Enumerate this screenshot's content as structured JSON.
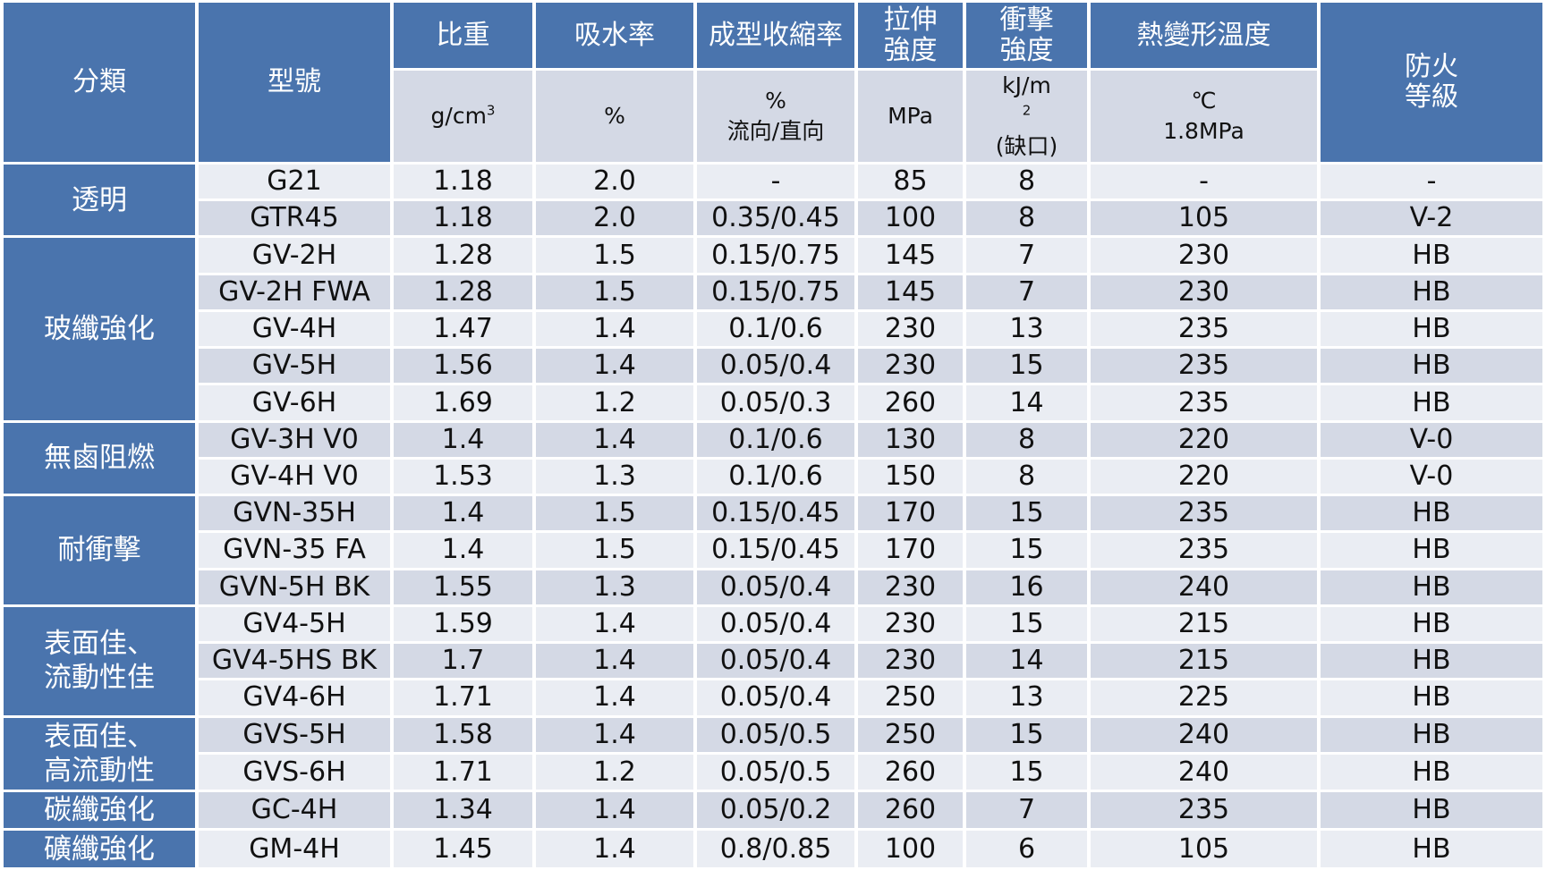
{
  "headers": {
    "category": "分類",
    "model": "型號",
    "density": "比重",
    "water_absorption": "吸水率",
    "shrinkage": "成型收縮率",
    "tensile_line1": "拉伸",
    "tensile_line2": "強度",
    "impact_line1": "衝擊",
    "impact_line2": "強度",
    "hdt": "熱變形溫度",
    "fire_line1": "防火",
    "fire_line2": "等級"
  },
  "units": {
    "density_base": "g/cm",
    "density_exp": "3",
    "water_absorption": "%",
    "shrinkage_line1": "%",
    "shrinkage_line2": "流向/直向",
    "tensile": "MPa",
    "impact_base": "kJ/m",
    "impact_exp": "2",
    "impact_line2": "(缺口)",
    "hdt_line1": "℃",
    "hdt_line2": "1.8MPa"
  },
  "categories": [
    {
      "label": "透明"
    },
    {
      "label": "玻纖強化"
    },
    {
      "label": "無鹵阻燃"
    },
    {
      "label": "耐衝擊"
    },
    {
      "label": "表面佳、流動性佳"
    },
    {
      "label": "表面佳、高流動性"
    },
    {
      "label": "碳纖強化"
    },
    {
      "label": "礦纖強化"
    }
  ],
  "rows": [
    {
      "model": "G21",
      "density": "1.18",
      "water": "2.0",
      "shrink": "-",
      "tensile": "85",
      "impact": "8",
      "hdt": "-",
      "fire": "-"
    },
    {
      "model": "GTR45",
      "density": "1.18",
      "water": "2.0",
      "shrink": "0.35/0.45",
      "tensile": "100",
      "impact": "8",
      "hdt": "105",
      "fire": "V-2"
    },
    {
      "model": "GV-2H",
      "density": "1.28",
      "water": "1.5",
      "shrink": "0.15/0.75",
      "tensile": "145",
      "impact": "7",
      "hdt": "230",
      "fire": "HB"
    },
    {
      "model": "GV-2H FWA",
      "density": "1.28",
      "water": "1.5",
      "shrink": "0.15/0.75",
      "tensile": "145",
      "impact": "7",
      "hdt": "230",
      "fire": "HB"
    },
    {
      "model": "GV-4H",
      "density": "1.47",
      "water": "1.4",
      "shrink": "0.1/0.6",
      "tensile": "230",
      "impact": "13",
      "hdt": "235",
      "fire": "HB"
    },
    {
      "model": "GV-5H",
      "density": "1.56",
      "water": "1.4",
      "shrink": "0.05/0.4",
      "tensile": "230",
      "impact": "15",
      "hdt": "235",
      "fire": "HB"
    },
    {
      "model": "GV-6H",
      "density": "1.69",
      "water": "1.2",
      "shrink": "0.05/0.3",
      "tensile": "260",
      "impact": "14",
      "hdt": "235",
      "fire": "HB"
    },
    {
      "model": "GV-3H V0",
      "density": "1.4",
      "water": "1.4",
      "shrink": "0.1/0.6",
      "tensile": "130",
      "impact": "8",
      "hdt": "220",
      "fire": "V-0"
    },
    {
      "model": "GV-4H V0",
      "density": "1.53",
      "water": "1.3",
      "shrink": "0.1/0.6",
      "tensile": "150",
      "impact": "8",
      "hdt": "220",
      "fire": "V-0"
    },
    {
      "model": "GVN-35H",
      "density": "1.4",
      "water": "1.5",
      "shrink": "0.15/0.45",
      "tensile": "170",
      "impact": "15",
      "hdt": "235",
      "fire": "HB"
    },
    {
      "model": "GVN-35 FA",
      "density": "1.4",
      "water": "1.5",
      "shrink": "0.15/0.45",
      "tensile": "170",
      "impact": "15",
      "hdt": "235",
      "fire": "HB"
    },
    {
      "model": "GVN-5H BK",
      "density": "1.55",
      "water": "1.3",
      "shrink": "0.05/0.4",
      "tensile": "230",
      "impact": "16",
      "hdt": "240",
      "fire": "HB"
    },
    {
      "model": "GV4-5H",
      "density": "1.59",
      "water": "1.4",
      "shrink": "0.05/0.4",
      "tensile": "230",
      "impact": "15",
      "hdt": "215",
      "fire": "HB"
    },
    {
      "model": "GV4-5HS BK",
      "density": "1.7",
      "water": "1.4",
      "shrink": "0.05/0.4",
      "tensile": "230",
      "impact": "14",
      "hdt": "215",
      "fire": "HB"
    },
    {
      "model": "GV4-6H",
      "density": "1.71",
      "water": "1.4",
      "shrink": "0.05/0.4",
      "tensile": "250",
      "impact": "13",
      "hdt": "225",
      "fire": "HB"
    },
    {
      "model": "GVS-5H",
      "density": "1.58",
      "water": "1.4",
      "shrink": "0.05/0.5",
      "tensile": "250",
      "impact": "15",
      "hdt": "240",
      "fire": "HB"
    },
    {
      "model": "GVS-6H",
      "density": "1.71",
      "water": "1.2",
      "shrink": "0.05/0.5",
      "tensile": "260",
      "impact": "15",
      "hdt": "240",
      "fire": "HB"
    },
    {
      "model": "GC-4H",
      "density": "1.34",
      "water": "1.4",
      "shrink": "0.05/0.2",
      "tensile": "260",
      "impact": "7",
      "hdt": "235",
      "fire": "HB"
    },
    {
      "model": "GM-4H",
      "density": "1.45",
      "water": "1.4",
      "shrink": "0.8/0.85",
      "tensile": "100",
      "impact": "6",
      "hdt": "105",
      "fire": "HB"
    }
  ],
  "colors": {
    "header_blue": "#4a74ad",
    "row_light": "#eaedf3",
    "row_dark": "#d4d9e5"
  }
}
